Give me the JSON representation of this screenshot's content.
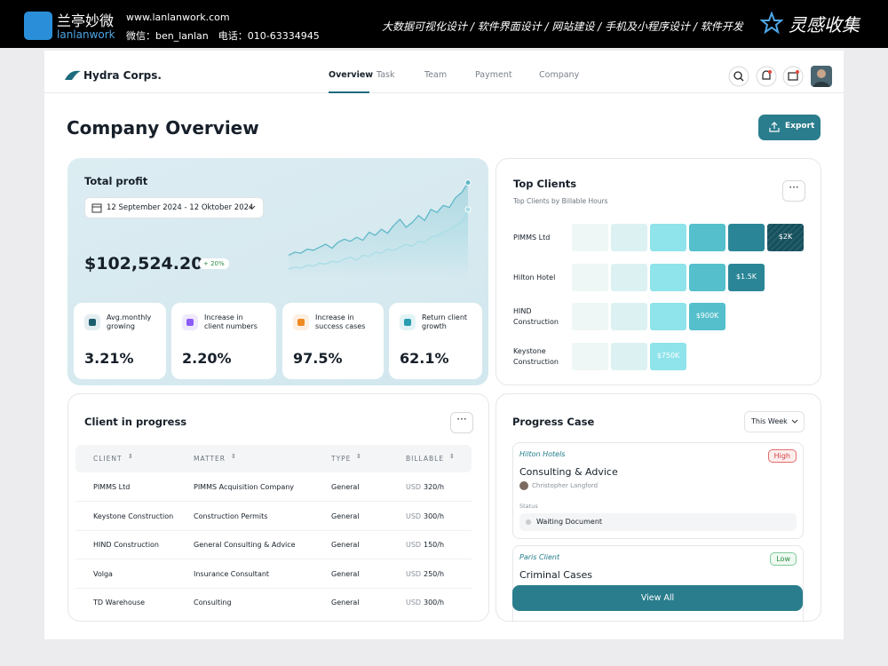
{
  "banner": {
    "logo_cn": "兰亭妙微",
    "logo_en": "lanlanwork",
    "url": "www.lanlanwork.com",
    "contact": "微信：ben_lanlan　电话：010-63334945",
    "services": "大数据可视化设计 / 软件界面设计 / 网站建设 / 手机及小程序设计 / 软件开发",
    "brand_right": "灵感收集"
  },
  "nav": {
    "brand": "Hydra Corps.",
    "items": [
      "Overview",
      "Task",
      "Team",
      "Payment",
      "Company"
    ]
  },
  "header": {
    "title": "Company Overview",
    "export": "Export"
  },
  "profit": {
    "title": "Total profit",
    "date_range": "12 September 2024 - 12 Oktober 2024",
    "amount": "$102,524.20",
    "change": "+ 20%",
    "trend": {
      "type": "area",
      "ylim": [
        0,
        100
      ],
      "series": [
        {
          "color": "#5fb8c8",
          "values": [
            22,
            25,
            24,
            28,
            27,
            30,
            33,
            29,
            35,
            38,
            36,
            40,
            37,
            45,
            42,
            48,
            44,
            52,
            58,
            50,
            55,
            62,
            57,
            68,
            65,
            72,
            70,
            80,
            85,
            95
          ]
        },
        {
          "color": "#a9dde6",
          "values": [
            8,
            10,
            9,
            12,
            11,
            14,
            13,
            16,
            15,
            18,
            20,
            17,
            22,
            21,
            25,
            24,
            28,
            27,
            30,
            33,
            31,
            36,
            35,
            40,
            42,
            45,
            48,
            52,
            56,
            68
          ]
        }
      ]
    },
    "metrics": [
      {
        "label": "Avg.monthly growing",
        "value": "3.21%"
      },
      {
        "label": "Increase in client numbers",
        "value": "2.20%"
      },
      {
        "label": "Increase in success cases",
        "value": "97.5%"
      },
      {
        "label": "Return client growth",
        "value": "62.1%"
      }
    ]
  },
  "top_clients": {
    "title": "Top Clients",
    "subtitle": "Top Clients by Billable Hours",
    "rows": [
      {
        "name": "PIMMS Ltd",
        "blocks": 6,
        "amount": "$2K"
      },
      {
        "name": "Hilton Hotel",
        "blocks": 5,
        "amount": "$1.5K"
      },
      {
        "name": "HIND Construction",
        "blocks": 4,
        "amount": "$900K"
      },
      {
        "name": "Keystone Construction",
        "blocks": 3,
        "amount": "$750K"
      }
    ]
  },
  "clients_table": {
    "title": "Client in progress",
    "headers": [
      "CLIENT",
      "MATTER",
      "TYPE",
      "BILLABLE"
    ],
    "rows": [
      [
        "PIMMS Ltd",
        "PIMMS Acquisition Company",
        "General",
        {
          "currency": "USD",
          "rate": "320/h"
        }
      ],
      [
        "Keystone Construction",
        "Construction Permits",
        "General",
        {
          "currency": "USD",
          "rate": "300/h"
        }
      ],
      [
        "HIND Construction",
        "General Consulting & Advice",
        "General",
        {
          "currency": "USD",
          "rate": "150/h"
        }
      ],
      [
        "Volga",
        "Insurance Consultant",
        "General",
        {
          "currency": "USD",
          "rate": "250/h"
        }
      ],
      [
        "TD Warehouse",
        "Consulting",
        "General",
        {
          "currency": "USD",
          "rate": "300/h"
        }
      ]
    ]
  },
  "progress": {
    "title": "Progress Case",
    "filter": "This Week",
    "view_all": "View All",
    "cases": [
      {
        "client": "Hilton Hotels",
        "priority": "High",
        "title": "Consulting & Advice",
        "person": "Christopher Langford",
        "status_label": "Status",
        "status": "Waiting Document"
      },
      {
        "client": "Paris Client",
        "priority": "Low",
        "title": "Criminal Cases"
      }
    ]
  }
}
